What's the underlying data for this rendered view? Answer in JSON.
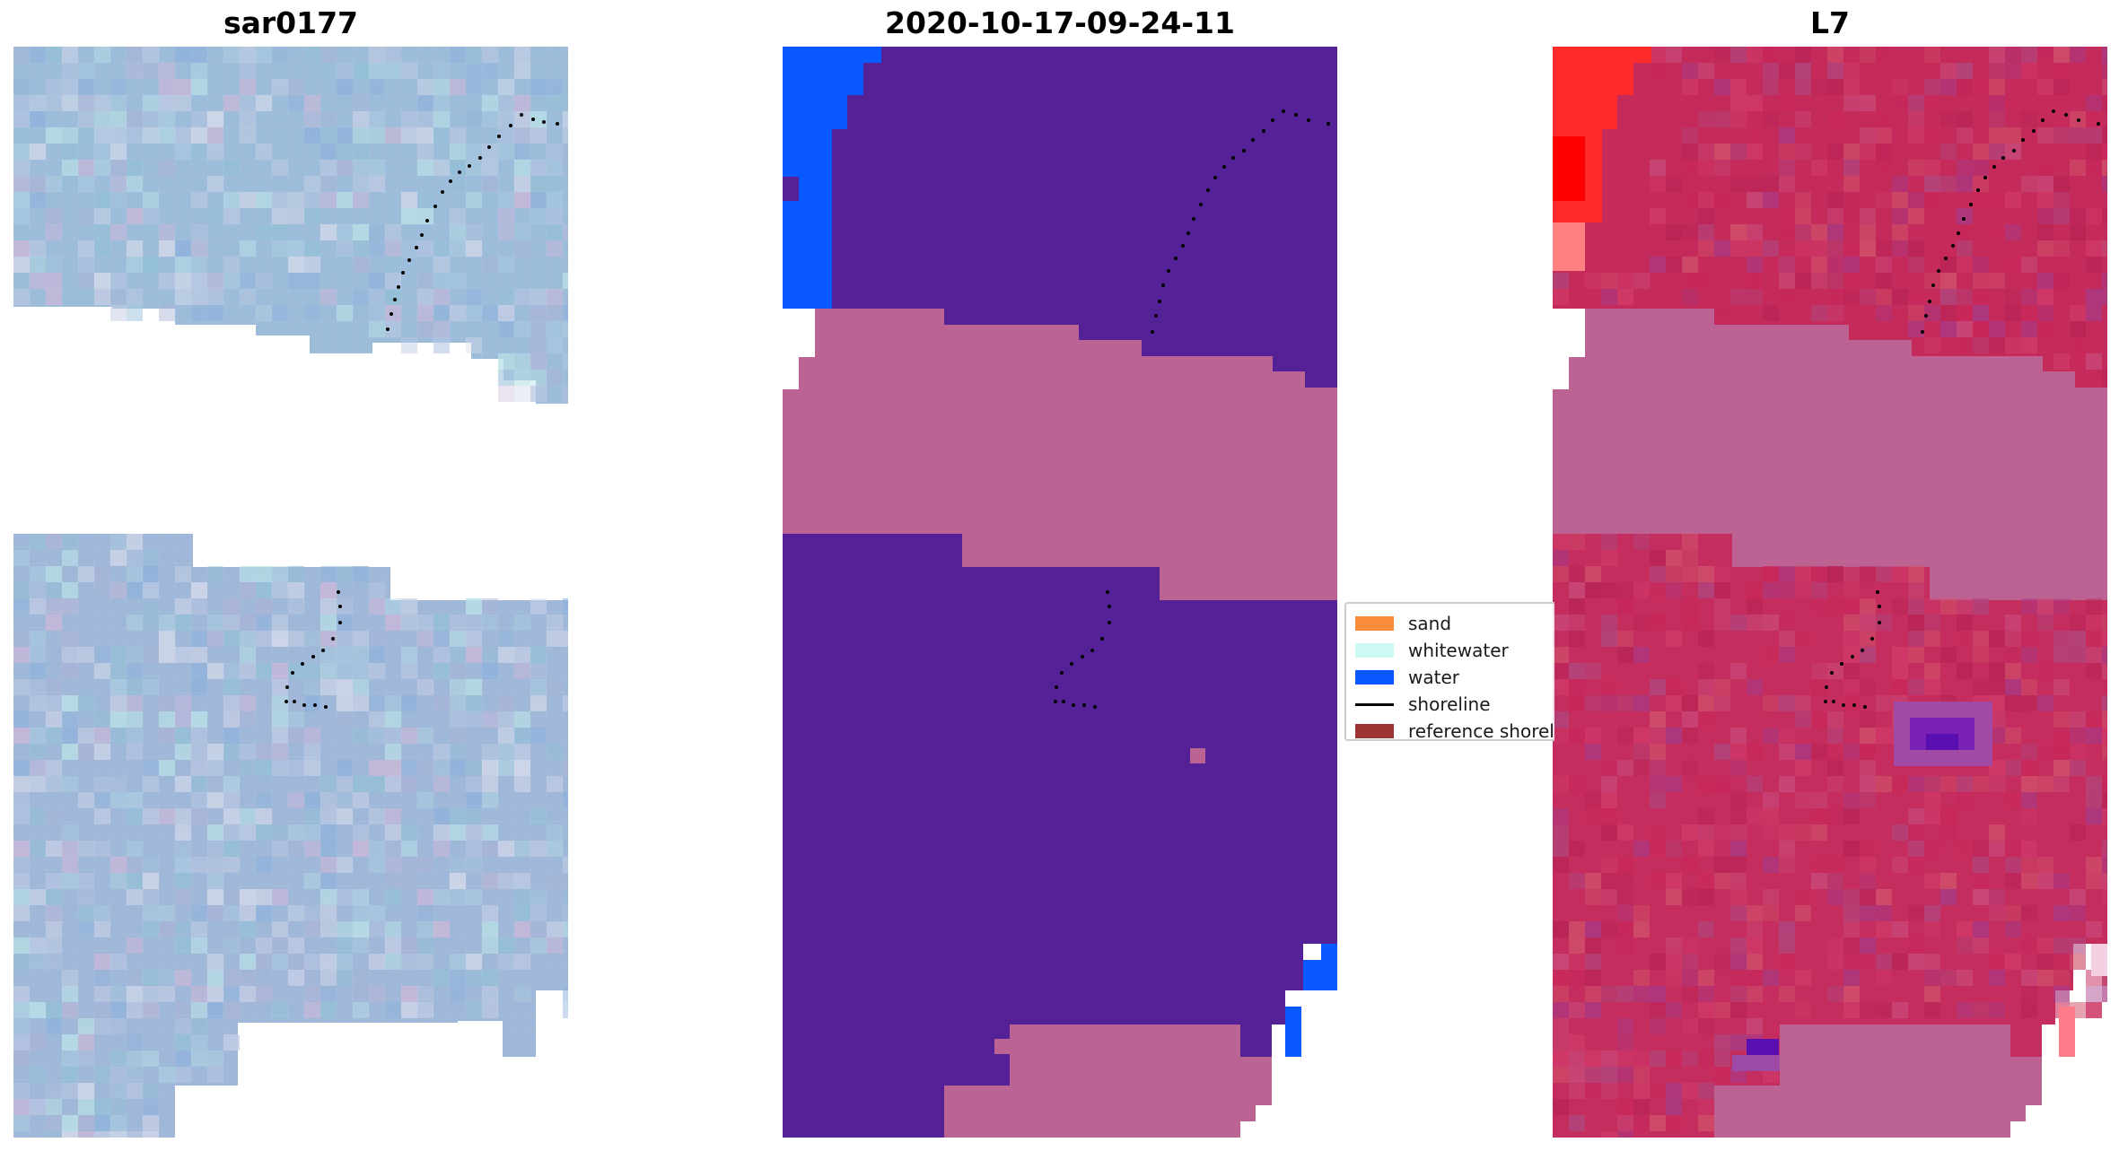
{
  "panels": [
    {
      "title": "sar0177"
    },
    {
      "title": "2020-10-17-09-24-11"
    },
    {
      "title": "L7"
    }
  ],
  "legend": {
    "items": [
      {
        "label": "sand",
        "kind": "patch",
        "color": "#fb8c3c"
      },
      {
        "label": "whitewater",
        "kind": "patch",
        "color": "#cdfaf2"
      },
      {
        "label": "water",
        "kind": "patch",
        "color": "#0a58ff"
      },
      {
        "label": "shoreline",
        "kind": "line",
        "color": "#000000"
      },
      {
        "label": "reference shoreline buffer",
        "kind": "patch",
        "color": "#9b3433"
      }
    ]
  },
  "colors": {
    "classified_water_body": "#542296",
    "classified_land": "#bb6393",
    "classified_water": "#0a58ff",
    "l7_red": "#c42a5a",
    "l7_bright_red": "#ff2020",
    "l7_pink": "#bc6393",
    "l7_purple": "#5a0fb0",
    "sar_blue": "#9dbada"
  }
}
